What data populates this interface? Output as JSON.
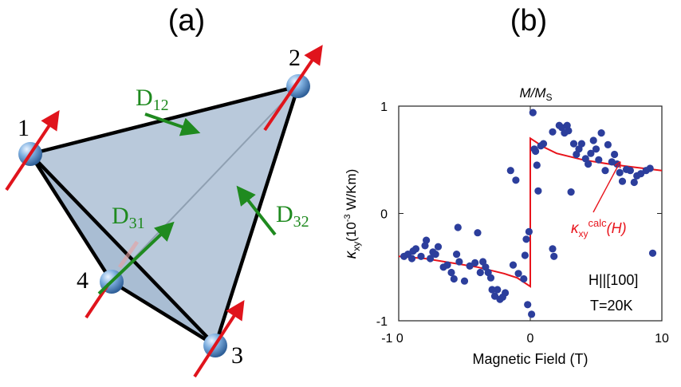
{
  "panel_a": {
    "label": "(a)",
    "sites": [
      "1",
      "2",
      "3",
      "4"
    ],
    "vectors": {
      "d12": "D",
      "d12_sub": "12",
      "d31": "D",
      "d31_sub": "31",
      "d32": "D",
      "d32_sub": "32"
    },
    "colors": {
      "face": "#b9c9db",
      "edge": "#000000",
      "spin": "#e0141c",
      "dm": "#1f8a1f",
      "sphere": "#7aa9d6"
    }
  },
  "panel_b": {
    "label": "(b)",
    "top_axis_label": "M/M",
    "top_axis_sub": "S",
    "ylabel_kappa": "κ",
    "ylabel_sub": "xy",
    "ylabel_rest": "(10",
    "ylabel_exp": "-3",
    "ylabel_unit": " W/Km)",
    "xlabel": "Magnetic Field (T)",
    "curve_label_kappa": "κ",
    "curve_label_sub": "xy",
    "curve_label_sup": "calc",
    "curve_label_arg": "(H)",
    "condition_field": "H||[100]",
    "condition_temp": "T=20K",
    "colors": {
      "points": "#2c3e9c",
      "curve": "#e8141c"
    }
  },
  "chart_data": {
    "type": "scatter",
    "title": "",
    "xlabel": "Magnetic Field (T)",
    "ylabel": "κxy (10-3 W/Km)",
    "xlim": [
      -10,
      10
    ],
    "ylim": [
      -1,
      1
    ],
    "x_ticks": [
      -10,
      0,
      10
    ],
    "x_tick_labels": [
      "-1 0",
      "0",
      "10"
    ],
    "top_ticks": [
      -1,
      0,
      1
    ],
    "top_tick_labels": [
      "-1",
      "0",
      "1"
    ],
    "y_ticks": [
      1,
      0,
      -1
    ],
    "y_tick_labels": [
      "1",
      "0",
      "-1"
    ],
    "series": [
      {
        "name": "data",
        "x": [
          -9.6,
          -9.3,
          -9.0,
          -8.9,
          -8.7,
          -8.3,
          -8.0,
          -7.9,
          -7.6,
          -7.4,
          -7.0,
          -6.6,
          -6.3,
          -6.0,
          -5.8,
          -5.6,
          -5.5,
          -5.4,
          -5.0,
          -4.6,
          -4.2,
          -4.0,
          -3.8,
          -3.6,
          -3.4,
          -3.2,
          -3.0,
          -2.9,
          -2.7,
          -2.5,
          -2.3,
          -2.1,
          -1.9,
          -1.5,
          -1.1,
          -0.9,
          -0.5,
          -0.4,
          -0.3,
          -0.2,
          -0.1,
          0.2,
          0.3,
          0.4,
          0.5,
          0.6,
          0.8,
          1.0,
          1.7,
          1.7,
          1.8,
          2.2,
          2.4,
          2.6,
          2.8,
          2.9,
          3.1,
          3.3,
          3.5,
          3.7,
          3.9,
          4.2,
          4.4,
          4.6,
          4.8,
          5.0,
          5.2,
          5.4,
          5.7,
          5.9,
          6.2,
          6.4,
          6.6,
          6.8,
          7.0,
          7.3,
          7.6,
          7.9,
          8.1,
          8.4,
          8.8,
          9.1,
          9.3,
          -7.2,
          -1.3,
          0.1
        ],
        "y": [
          -0.4,
          -0.38,
          -0.42,
          -0.35,
          -0.33,
          -0.4,
          -0.3,
          -0.25,
          -0.42,
          -0.36,
          -0.31,
          -0.5,
          -0.48,
          -0.55,
          -0.61,
          -0.38,
          -0.13,
          -0.45,
          -0.63,
          -0.49,
          -0.46,
          -0.18,
          -0.55,
          -0.45,
          -0.5,
          -0.55,
          -0.6,
          -0.71,
          -0.77,
          -0.71,
          -0.8,
          -0.78,
          -0.74,
          0.4,
          0.31,
          -0.56,
          -0.61,
          -0.39,
          -0.24,
          -0.85,
          -0.17,
          0.94,
          0.6,
          0.58,
          0.45,
          0.21,
          0.63,
          0.65,
          0.76,
          -0.33,
          -0.4,
          0.82,
          0.8,
          0.75,
          0.82,
          0.77,
          0.2,
          0.65,
          0.55,
          0.6,
          0.65,
          0.51,
          0.46,
          0.56,
          0.68,
          0.6,
          0.5,
          0.75,
          0.4,
          0.64,
          0.48,
          0.55,
          0.46,
          0.38,
          0.3,
          0.41,
          0.4,
          0.29,
          0.35,
          0.37,
          0.4,
          0.42,
          -0.37,
          -0.38,
          -0.48,
          -0.94
        ]
      },
      {
        "name": "κxy calc(H)",
        "x": [
          -10,
          -8,
          -6,
          -4,
          -2,
          -1,
          0,
          0,
          1,
          2,
          4,
          6,
          8,
          10
        ],
        "y": [
          -0.4,
          -0.42,
          -0.46,
          -0.5,
          -0.56,
          -0.6,
          -0.68,
          0.7,
          0.62,
          0.56,
          0.5,
          0.46,
          0.43,
          0.4
        ]
      }
    ]
  }
}
